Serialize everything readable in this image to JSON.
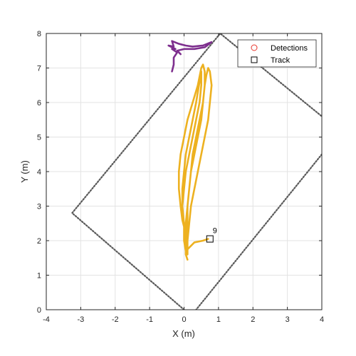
{
  "chart_data": {
    "type": "line",
    "xlabel": "X (m)",
    "ylabel": "Y (m)",
    "xlim": [
      -4,
      4
    ],
    "ylim": [
      0,
      8
    ],
    "xticks": [
      -4,
      -3,
      -2,
      -1,
      0,
      1,
      2,
      3,
      4
    ],
    "yticks": [
      0,
      1,
      2,
      3,
      4,
      5,
      6,
      7,
      8
    ],
    "grid": true,
    "legend_position": "top-right",
    "legend": [
      {
        "label": "Detections",
        "marker": "circle",
        "color": "#e8352b"
      },
      {
        "label": "Track",
        "marker": "square",
        "color": "#000000"
      }
    ],
    "coverage_boundary": {
      "style": "dotted",
      "color": "#5a5a5a",
      "points": [
        [
          0.0,
          0.0
        ],
        [
          -3.25,
          2.8
        ],
        [
          1.05,
          8.0
        ],
        [
          4.0,
          5.6
        ]
      ],
      "open_segment": [
        [
          4.0,
          4.5
        ],
        [
          0.35,
          0.0
        ]
      ]
    },
    "series": [
      {
        "color": "#edb120",
        "points": [
          [
            0.1,
            1.45
          ],
          [
            0.05,
            1.6
          ],
          [
            0.05,
            1.9
          ],
          [
            0.05,
            2.2
          ],
          [
            -0.05,
            2.6
          ],
          [
            -0.1,
            3.0
          ],
          [
            -0.15,
            3.5
          ],
          [
            -0.15,
            4.0
          ],
          [
            -0.1,
            4.5
          ],
          [
            0.0,
            5.0
          ],
          [
            0.1,
            5.5
          ],
          [
            0.25,
            6.0
          ],
          [
            0.4,
            6.5
          ],
          [
            0.5,
            7.0
          ],
          [
            0.55,
            7.1
          ],
          [
            0.6,
            6.9
          ],
          [
            0.6,
            6.5
          ],
          [
            0.55,
            6.0
          ],
          [
            0.5,
            5.5
          ],
          [
            0.4,
            5.0
          ],
          [
            0.3,
            4.5
          ],
          [
            0.2,
            4.0
          ],
          [
            0.15,
            3.5
          ],
          [
            0.1,
            3.0
          ],
          [
            0.1,
            2.5
          ],
          [
            0.05,
            2.0
          ],
          [
            0.1,
            1.6
          ],
          [
            0.1,
            2.0
          ],
          [
            0.15,
            2.5
          ],
          [
            0.2,
            3.0
          ],
          [
            0.3,
            3.5
          ],
          [
            0.4,
            4.0
          ],
          [
            0.5,
            4.5
          ],
          [
            0.6,
            5.0
          ],
          [
            0.7,
            5.5
          ],
          [
            0.75,
            6.0
          ],
          [
            0.8,
            6.5
          ],
          [
            0.75,
            6.9
          ],
          [
            0.7,
            7.0
          ],
          [
            0.65,
            6.8
          ],
          [
            0.6,
            6.5
          ],
          [
            0.55,
            6.0
          ],
          [
            0.45,
            5.5
          ],
          [
            0.35,
            5.0
          ],
          [
            0.25,
            4.5
          ],
          [
            0.2,
            4.0
          ],
          [
            0.15,
            3.5
          ],
          [
            0.1,
            3.0
          ],
          [
            0.05,
            2.5
          ],
          [
            0.05,
            2.0
          ],
          [
            0.0,
            2.5
          ],
          [
            -0.05,
            3.0
          ],
          [
            0.0,
            3.5
          ],
          [
            0.05,
            4.0
          ],
          [
            0.15,
            4.5
          ],
          [
            0.25,
            5.0
          ],
          [
            0.35,
            5.5
          ],
          [
            0.45,
            6.0
          ],
          [
            0.5,
            6.5
          ],
          [
            0.5,
            6.9
          ],
          [
            0.45,
            6.6
          ],
          [
            0.35,
            6.0
          ],
          [
            0.25,
            5.5
          ],
          [
            0.15,
            5.0
          ],
          [
            0.05,
            4.5
          ],
          [
            0.0,
            4.0
          ],
          [
            -0.05,
            3.5
          ],
          [
            -0.05,
            3.0
          ],
          [
            0.0,
            2.5
          ],
          [
            0.0,
            2.0
          ],
          [
            0.05,
            1.7
          ],
          [
            0.3,
            1.95
          ],
          [
            0.55,
            2.0
          ],
          [
            0.7,
            2.05
          ]
        ]
      },
      {
        "color": "#7e2f8e",
        "points": [
          [
            -0.35,
            6.9
          ],
          [
            -0.3,
            7.1
          ],
          [
            -0.3,
            7.3
          ],
          [
            -0.2,
            7.45
          ],
          [
            -0.35,
            7.55
          ],
          [
            -0.25,
            7.55
          ],
          [
            -0.45,
            7.65
          ],
          [
            -0.3,
            7.62
          ],
          [
            -0.35,
            7.78
          ],
          [
            -0.15,
            7.7
          ],
          [
            0.05,
            7.65
          ],
          [
            0.25,
            7.62
          ],
          [
            0.55,
            7.65
          ],
          [
            0.8,
            7.75
          ],
          [
            0.6,
            7.6
          ],
          [
            0.3,
            7.55
          ],
          [
            0.0,
            7.55
          ],
          [
            -0.2,
            7.5
          ],
          [
            -0.1,
            7.4
          ]
        ]
      }
    ],
    "track_marker": {
      "x": 0.75,
      "y": 2.05,
      "label": "9"
    }
  }
}
